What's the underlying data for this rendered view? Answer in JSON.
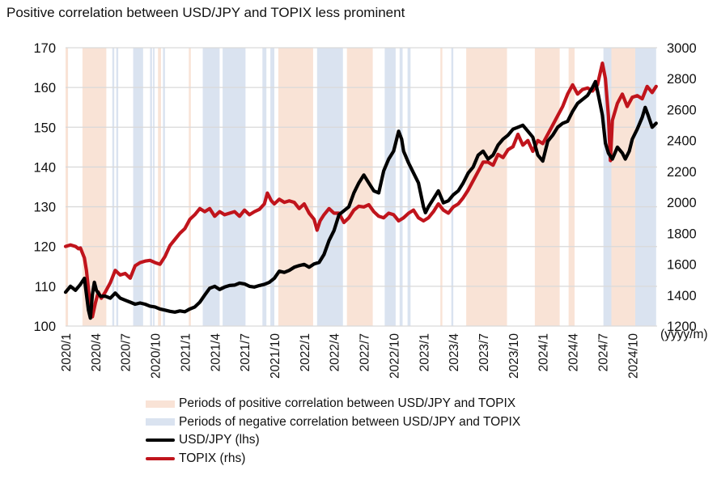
{
  "chart_data": {
    "type": "line",
    "title": "Positive correlation between USD/JPY and TOPIX less prominent",
    "xlabel": "(yyyy/m)",
    "x_ticks": [
      "2020/1",
      "2020/4",
      "2020/7",
      "2020/10",
      "2021/1",
      "2021/4",
      "2021/7",
      "2021/10",
      "2022/1",
      "2022/4",
      "2022/7",
      "2022/10",
      "2023/1",
      "2023/4",
      "2023/7",
      "2023/10",
      "2024/1",
      "2024/4",
      "2024/7",
      "2024/10"
    ],
    "x_range_months": [
      0,
      59.5
    ],
    "y_left": {
      "label": "USD/JPY (lhs)",
      "range": [
        100,
        170
      ],
      "ticks": [
        100,
        110,
        120,
        130,
        140,
        150,
        160,
        170
      ]
    },
    "y_right": {
      "label": "TOPIX (rhs)",
      "range": [
        1200,
        3000
      ],
      "ticks": [
        1200,
        1400,
        1600,
        1800,
        2000,
        2200,
        2400,
        2600,
        2800,
        3000
      ]
    },
    "grid": true,
    "legend_position": "bottom",
    "colors": {
      "usdjpy": "#000000",
      "topix": "#c0141c",
      "positive": "#f9e3d6",
      "negative": "#dae3f0",
      "grid": "#d9d9d9"
    },
    "bands": [
      {
        "type": "positive",
        "start": 0.0,
        "end": 0.25
      },
      {
        "type": "positive",
        "start": 1.7,
        "end": 4.1
      },
      {
        "type": "negative",
        "start": 4.7,
        "end": 4.9
      },
      {
        "type": "negative",
        "start": 5.1,
        "end": 5.3
      },
      {
        "type": "negative",
        "start": 6.8,
        "end": 7.8
      },
      {
        "type": "negative",
        "start": 8.5,
        "end": 8.7
      },
      {
        "type": "negative",
        "start": 8.8,
        "end": 8.95
      },
      {
        "type": "positive",
        "start": 9.3,
        "end": 9.6
      },
      {
        "type": "negative",
        "start": 9.8,
        "end": 10.0
      },
      {
        "type": "positive",
        "start": 12.4,
        "end": 12.6
      },
      {
        "type": "negative",
        "start": 13.8,
        "end": 15.5
      },
      {
        "type": "negative",
        "start": 15.8,
        "end": 18.1
      },
      {
        "type": "negative",
        "start": 19.8,
        "end": 20.2
      },
      {
        "type": "negative",
        "start": 20.6,
        "end": 21.0
      },
      {
        "type": "positive",
        "start": 21.4,
        "end": 24.9
      },
      {
        "type": "negative",
        "start": 25.3,
        "end": 27.9
      },
      {
        "type": "positive",
        "start": 28.3,
        "end": 30.9
      },
      {
        "type": "negative",
        "start": 32.1,
        "end": 33.2
      },
      {
        "type": "negative",
        "start": 33.6,
        "end": 33.9
      },
      {
        "type": "negative",
        "start": 34.4,
        "end": 34.7
      },
      {
        "type": "positive",
        "start": 37.7,
        "end": 37.9
      },
      {
        "type": "negative",
        "start": 38.8,
        "end": 39.0
      },
      {
        "type": "positive",
        "start": 40.3,
        "end": 44.4
      },
      {
        "type": "positive",
        "start": 47.2,
        "end": 49.7
      },
      {
        "type": "positive",
        "start": 50.6,
        "end": 51.2
      },
      {
        "type": "negative",
        "start": 54.1,
        "end": 54.9
      },
      {
        "type": "positive",
        "start": 54.9,
        "end": 57.3
      },
      {
        "type": "negative",
        "start": 57.3,
        "end": 59.4
      }
    ],
    "series": [
      {
        "name": "USD/JPY (lhs)",
        "axis": "left",
        "points": [
          [
            0,
            108.5
          ],
          [
            0.5,
            110
          ],
          [
            1,
            109
          ],
          [
            1.5,
            110.5
          ],
          [
            1.9,
            112
          ],
          [
            2.1,
            108
          ],
          [
            2.3,
            104
          ],
          [
            2.5,
            102
          ],
          [
            2.7,
            108
          ],
          [
            2.9,
            111
          ],
          [
            3.1,
            109
          ],
          [
            3.5,
            107.5
          ],
          [
            4,
            107.5
          ],
          [
            4.5,
            107
          ],
          [
            5,
            108.3
          ],
          [
            5.5,
            107
          ],
          [
            6,
            106.5
          ],
          [
            6.5,
            106
          ],
          [
            7,
            105.5
          ],
          [
            7.5,
            105.8
          ],
          [
            8,
            105.5
          ],
          [
            8.5,
            105
          ],
          [
            9,
            104.8
          ],
          [
            9.5,
            104.3
          ],
          [
            10,
            104
          ],
          [
            10.5,
            103.7
          ],
          [
            11,
            103.5
          ],
          [
            11.5,
            103.8
          ],
          [
            12,
            103.6
          ],
          [
            12.5,
            104.3
          ],
          [
            13,
            104.8
          ],
          [
            13.5,
            106
          ],
          [
            14,
            107.8
          ],
          [
            14.5,
            109.5
          ],
          [
            15,
            110
          ],
          [
            15.5,
            109.2
          ],
          [
            16,
            109.8
          ],
          [
            16.5,
            110.2
          ],
          [
            17,
            110.3
          ],
          [
            17.5,
            110.8
          ],
          [
            18,
            110.6
          ],
          [
            18.5,
            110
          ],
          [
            19,
            109.8
          ],
          [
            19.5,
            110.2
          ],
          [
            20,
            110.5
          ],
          [
            20.5,
            111
          ],
          [
            21,
            112
          ],
          [
            21.5,
            113.8
          ],
          [
            22,
            113.5
          ],
          [
            22.5,
            114
          ],
          [
            23,
            114.8
          ],
          [
            23.5,
            115.2
          ],
          [
            24,
            115.5
          ],
          [
            24.5,
            114.8
          ],
          [
            25,
            115.6
          ],
          [
            25.5,
            116
          ],
          [
            26,
            118
          ],
          [
            26.5,
            121.5
          ],
          [
            27,
            124
          ],
          [
            27.5,
            128
          ],
          [
            28,
            129
          ],
          [
            28.5,
            130
          ],
          [
            29,
            133.5
          ],
          [
            29.5,
            136
          ],
          [
            30,
            138
          ],
          [
            30.5,
            136
          ],
          [
            31,
            134
          ],
          [
            31.5,
            133.5
          ],
          [
            32,
            139
          ],
          [
            32.5,
            142
          ],
          [
            33,
            144
          ],
          [
            33.2,
            146
          ],
          [
            33.5,
            149
          ],
          [
            33.8,
            147
          ],
          [
            34,
            144
          ],
          [
            34.5,
            141
          ],
          [
            35,
            138.5
          ],
          [
            35.5,
            136
          ],
          [
            36,
            130
          ],
          [
            36.2,
            128.5
          ],
          [
            36.5,
            130
          ],
          [
            37,
            132
          ],
          [
            37.5,
            134
          ],
          [
            38,
            131
          ],
          [
            38.5,
            131.5
          ],
          [
            39,
            133
          ],
          [
            39.5,
            134
          ],
          [
            40,
            136
          ],
          [
            40.5,
            138.5
          ],
          [
            41,
            140
          ],
          [
            41.5,
            143
          ],
          [
            42,
            144
          ],
          [
            42.5,
            142
          ],
          [
            43,
            143
          ],
          [
            43.5,
            145.5
          ],
          [
            44,
            147
          ],
          [
            44.5,
            148
          ],
          [
            45,
            149.5
          ],
          [
            45.5,
            150
          ],
          [
            46,
            150.5
          ],
          [
            46.5,
            149
          ],
          [
            47,
            147.5
          ],
          [
            47.5,
            143
          ],
          [
            48,
            141.5
          ],
          [
            48.5,
            146.5
          ],
          [
            49,
            148
          ],
          [
            49.5,
            150
          ],
          [
            50,
            151
          ],
          [
            50.5,
            151.5
          ],
          [
            51,
            154
          ],
          [
            51.5,
            156
          ],
          [
            52,
            157
          ],
          [
            52.5,
            158
          ],
          [
            53,
            160
          ],
          [
            53.3,
            161.5
          ],
          [
            53.6,
            158
          ],
          [
            54,
            153
          ],
          [
            54.3,
            146
          ],
          [
            54.6,
            143.5
          ],
          [
            55,
            142
          ],
          [
            55.5,
            145
          ],
          [
            56,
            143.5
          ],
          [
            56.3,
            142
          ],
          [
            56.7,
            144
          ],
          [
            57,
            147
          ],
          [
            57.5,
            149.5
          ],
          [
            58,
            152.5
          ],
          [
            58.3,
            155
          ],
          [
            58.6,
            153
          ],
          [
            59,
            150
          ],
          [
            59.4,
            151
          ]
        ]
      },
      {
        "name": "TOPIX (rhs)",
        "axis": "right",
        "points": [
          [
            0,
            1715
          ],
          [
            0.5,
            1725
          ],
          [
            1,
            1715
          ],
          [
            1.3,
            1700
          ],
          [
            1.5,
            1705
          ],
          [
            1.9,
            1640
          ],
          [
            2.1,
            1560
          ],
          [
            2.3,
            1440
          ],
          [
            2.5,
            1300
          ],
          [
            2.7,
            1260
          ],
          [
            3,
            1350
          ],
          [
            3.3,
            1420
          ],
          [
            3.6,
            1380
          ],
          [
            4,
            1420
          ],
          [
            4.5,
            1480
          ],
          [
            5,
            1560
          ],
          [
            5.5,
            1530
          ],
          [
            6,
            1540
          ],
          [
            6.5,
            1510
          ],
          [
            7,
            1590
          ],
          [
            7.5,
            1610
          ],
          [
            8,
            1620
          ],
          [
            8.5,
            1625
          ],
          [
            9,
            1610
          ],
          [
            9.5,
            1600
          ],
          [
            10,
            1650
          ],
          [
            10.5,
            1720
          ],
          [
            11,
            1760
          ],
          [
            11.5,
            1800
          ],
          [
            12,
            1830
          ],
          [
            12.5,
            1890
          ],
          [
            13,
            1920
          ],
          [
            13.5,
            1960
          ],
          [
            14,
            1940
          ],
          [
            14.5,
            1960
          ],
          [
            15,
            1910
          ],
          [
            15.5,
            1940
          ],
          [
            16,
            1920
          ],
          [
            16.5,
            1930
          ],
          [
            17,
            1940
          ],
          [
            17.5,
            1910
          ],
          [
            18,
            1950
          ],
          [
            18.5,
            1920
          ],
          [
            19,
            1940
          ],
          [
            19.5,
            1955
          ],
          [
            20,
            1990
          ],
          [
            20.3,
            2060
          ],
          [
            20.7,
            2010
          ],
          [
            21,
            1990
          ],
          [
            21.5,
            2020
          ],
          [
            22,
            2000
          ],
          [
            22.5,
            2010
          ],
          [
            23,
            2000
          ],
          [
            23.5,
            1960
          ],
          [
            24,
            1990
          ],
          [
            24.5,
            1930
          ],
          [
            25,
            1890
          ],
          [
            25.3,
            1820
          ],
          [
            25.6,
            1880
          ],
          [
            26,
            1920
          ],
          [
            26.5,
            1960
          ],
          [
            27,
            1930
          ],
          [
            27.5,
            1930
          ],
          [
            28,
            1870
          ],
          [
            28.5,
            1900
          ],
          [
            29,
            1950
          ],
          [
            29.5,
            1975
          ],
          [
            30,
            1970
          ],
          [
            30.5,
            1985
          ],
          [
            31,
            1940
          ],
          [
            31.5,
            1910
          ],
          [
            32,
            1900
          ],
          [
            32.5,
            1930
          ],
          [
            33,
            1920
          ],
          [
            33.5,
            1880
          ],
          [
            34,
            1900
          ],
          [
            34.5,
            1930
          ],
          [
            35,
            1950
          ],
          [
            35.5,
            1900
          ],
          [
            36,
            1880
          ],
          [
            36.5,
            1900
          ],
          [
            37,
            1940
          ],
          [
            37.5,
            1990
          ],
          [
            38,
            1950
          ],
          [
            38.5,
            1930
          ],
          [
            39,
            1970
          ],
          [
            39.5,
            1990
          ],
          [
            40,
            2030
          ],
          [
            40.5,
            2080
          ],
          [
            41,
            2140
          ],
          [
            41.5,
            2200
          ],
          [
            42,
            2260
          ],
          [
            42.5,
            2260
          ],
          [
            43,
            2240
          ],
          [
            43.5,
            2310
          ],
          [
            44,
            2290
          ],
          [
            44.5,
            2340
          ],
          [
            45,
            2360
          ],
          [
            45.5,
            2440
          ],
          [
            46,
            2370
          ],
          [
            46.5,
            2400
          ],
          [
            47,
            2330
          ],
          [
            47.5,
            2400
          ],
          [
            48,
            2380
          ],
          [
            48.5,
            2440
          ],
          [
            49,
            2500
          ],
          [
            49.5,
            2560
          ],
          [
            50,
            2620
          ],
          [
            50.5,
            2700
          ],
          [
            51,
            2760
          ],
          [
            51.5,
            2700
          ],
          [
            52,
            2730
          ],
          [
            52.5,
            2740
          ],
          [
            53,
            2720
          ],
          [
            53.5,
            2760
          ],
          [
            54,
            2900
          ],
          [
            54.3,
            2800
          ],
          [
            54.6,
            2560
          ],
          [
            54.8,
            2270
          ],
          [
            55,
            2530
          ],
          [
            55.5,
            2640
          ],
          [
            56,
            2700
          ],
          [
            56.5,
            2620
          ],
          [
            57,
            2680
          ],
          [
            57.5,
            2690
          ],
          [
            58,
            2670
          ],
          [
            58.5,
            2750
          ],
          [
            59,
            2710
          ],
          [
            59.4,
            2750
          ]
        ]
      }
    ],
    "legend": [
      {
        "kind": "band",
        "label": "Periods of positive correlation between USD/JPY and TOPIX"
      },
      {
        "kind": "band",
        "label": "Periods of negative correlation between USD/JPY and TOPIX"
      },
      {
        "kind": "line",
        "label": "USD/JPY (lhs)"
      },
      {
        "kind": "line",
        "label": "TOPIX (rhs)"
      }
    ]
  }
}
